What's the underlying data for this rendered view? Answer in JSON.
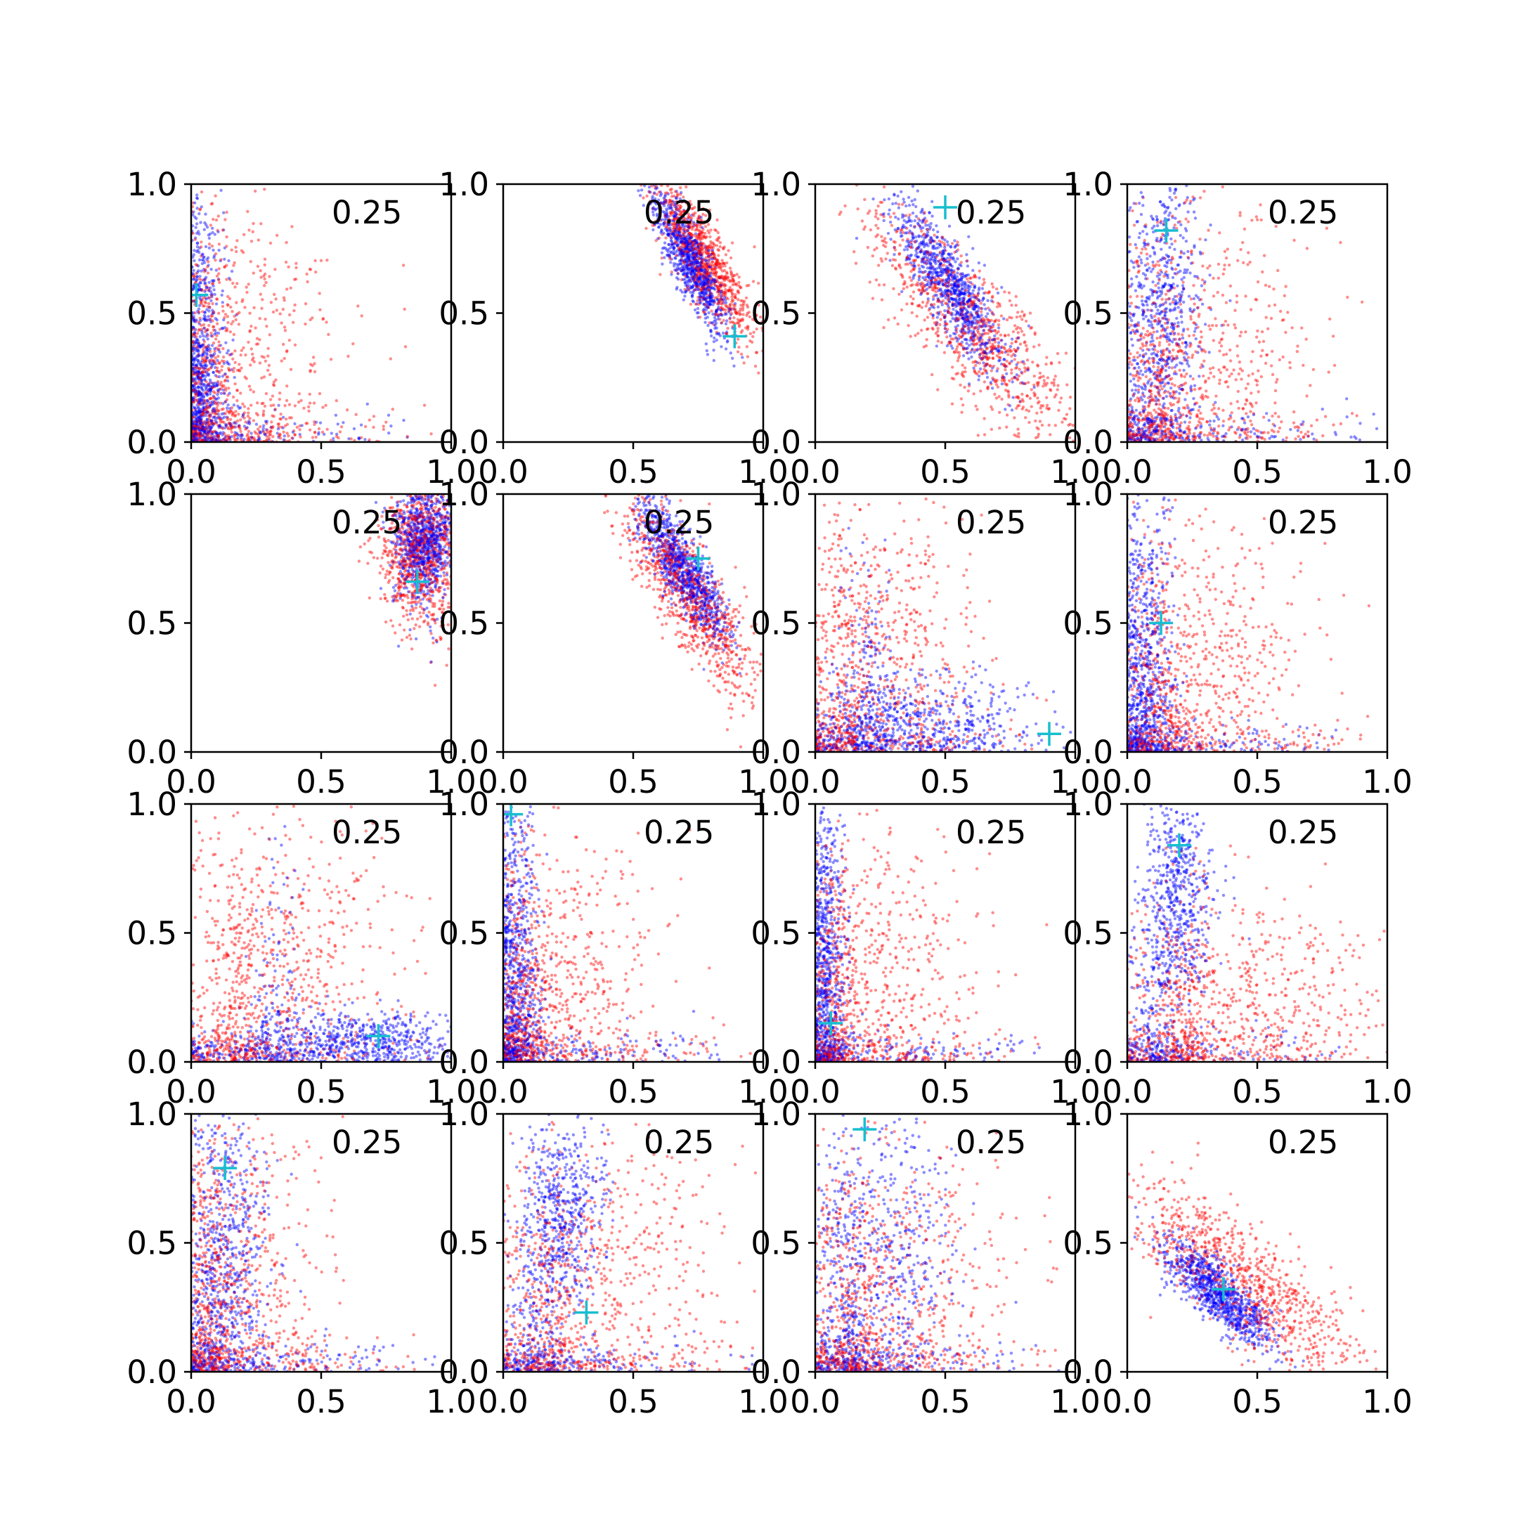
{
  "chart_data": {
    "type": "scatter",
    "layout": "4x4 grid",
    "panel_label": "0.25",
    "xlim": [
      0,
      1
    ],
    "ylim": [
      0,
      1
    ],
    "xticks": [
      0.0,
      0.5,
      1.0
    ],
    "yticks": [
      0.0,
      0.5,
      1.0
    ],
    "tick_format": "0.0",
    "grid": false,
    "legend": null,
    "colors": {
      "series_a": "#0000ff",
      "series_b": "#ff0000",
      "marker": "#17becf",
      "axes": "#000000"
    },
    "panels": [
      {
        "marker": [
          0.02,
          0.57
        ],
        "pattern": "L-shape",
        "blue": {
          "cx": 0.04,
          "cy": 0.12,
          "sx": 0.05,
          "sy": 0.4
        },
        "red": {
          "cx": 0.1,
          "cy": 0.3,
          "sx": 0.25,
          "sy": 0.35
        }
      },
      {
        "marker": [
          0.89,
          0.41
        ],
        "pattern": "diagonal",
        "blue": {
          "cx": 0.72,
          "cy": 0.7,
          "sx": 0.07,
          "sy": 0.16
        },
        "red": {
          "cx": 0.78,
          "cy": 0.7,
          "sx": 0.09,
          "sy": 0.18
        }
      },
      {
        "marker": [
          0.5,
          0.91
        ],
        "pattern": "diagonal",
        "blue": {
          "cx": 0.52,
          "cy": 0.6,
          "sx": 0.1,
          "sy": 0.18
        },
        "red": {
          "cx": 0.6,
          "cy": 0.45,
          "sx": 0.18,
          "sy": 0.25
        }
      },
      {
        "marker": [
          0.15,
          0.82
        ],
        "pattern": "L-shape",
        "blue": {
          "cx": 0.15,
          "cy": 0.55,
          "sx": 0.07,
          "sy": 0.28
        },
        "red": {
          "cx": 0.25,
          "cy": 0.35,
          "sx": 0.22,
          "sy": 0.3
        }
      },
      {
        "marker": [
          0.87,
          0.66
        ],
        "pattern": "cluster",
        "blue": {
          "cx": 0.9,
          "cy": 0.82,
          "sx": 0.06,
          "sy": 0.12
        },
        "red": {
          "cx": 0.88,
          "cy": 0.78,
          "sx": 0.08,
          "sy": 0.15
        }
      },
      {
        "marker": [
          0.75,
          0.75
        ],
        "pattern": "diagonal",
        "blue": {
          "cx": 0.7,
          "cy": 0.7,
          "sx": 0.08,
          "sy": 0.15
        },
        "red": {
          "cx": 0.72,
          "cy": 0.6,
          "sx": 0.12,
          "sy": 0.22
        }
      },
      {
        "marker": [
          0.9,
          0.07
        ],
        "pattern": "L-shape",
        "blue": {
          "cx": 0.4,
          "cy": 0.12,
          "sx": 0.25,
          "sy": 0.1
        },
        "red": {
          "cx": 0.25,
          "cy": 0.4,
          "sx": 0.2,
          "sy": 0.3
        }
      },
      {
        "marker": [
          0.13,
          0.5
        ],
        "pattern": "L-shape",
        "blue": {
          "cx": 0.08,
          "cy": 0.3,
          "sx": 0.06,
          "sy": 0.35
        },
        "red": {
          "cx": 0.25,
          "cy": 0.35,
          "sx": 0.22,
          "sy": 0.3
        }
      },
      {
        "marker": [
          0.72,
          0.1
        ],
        "pattern": "L-shape",
        "blue": {
          "cx": 0.65,
          "cy": 0.08,
          "sx": 0.2,
          "sy": 0.06
        },
        "red": {
          "cx": 0.35,
          "cy": 0.4,
          "sx": 0.22,
          "sy": 0.3
        }
      },
      {
        "marker": [
          0.03,
          0.96
        ],
        "pattern": "L-shape",
        "blue": {
          "cx": 0.05,
          "cy": 0.4,
          "sx": 0.05,
          "sy": 0.35
        },
        "red": {
          "cx": 0.15,
          "cy": 0.3,
          "sx": 0.22,
          "sy": 0.3
        }
      },
      {
        "marker": [
          0.06,
          0.15
        ],
        "pattern": "L-shape",
        "blue": {
          "cx": 0.04,
          "cy": 0.45,
          "sx": 0.04,
          "sy": 0.35
        },
        "red": {
          "cx": 0.15,
          "cy": 0.35,
          "sx": 0.22,
          "sy": 0.3
        }
      },
      {
        "marker": [
          0.2,
          0.84
        ],
        "pattern": "L-shape",
        "blue": {
          "cx": 0.2,
          "cy": 0.65,
          "sx": 0.07,
          "sy": 0.22
        },
        "red": {
          "cx": 0.45,
          "cy": 0.25,
          "sx": 0.3,
          "sy": 0.2
        }
      },
      {
        "marker": [
          0.13,
          0.79
        ],
        "pattern": "L-shape",
        "blue": {
          "cx": 0.15,
          "cy": 0.5,
          "sx": 0.08,
          "sy": 0.3
        },
        "red": {
          "cx": 0.15,
          "cy": 0.4,
          "sx": 0.18,
          "sy": 0.3
        }
      },
      {
        "marker": [
          0.32,
          0.23
        ],
        "pattern": "L-shape",
        "blue": {
          "cx": 0.22,
          "cy": 0.6,
          "sx": 0.08,
          "sy": 0.22
        },
        "red": {
          "cx": 0.35,
          "cy": 0.4,
          "sx": 0.25,
          "sy": 0.3
        }
      },
      {
        "marker": [
          0.19,
          0.94
        ],
        "pattern": "L-shape",
        "blue": {
          "cx": 0.25,
          "cy": 0.45,
          "sx": 0.15,
          "sy": 0.3
        },
        "red": {
          "cx": 0.3,
          "cy": 0.35,
          "sx": 0.25,
          "sy": 0.3
        }
      },
      {
        "marker": [
          0.37,
          0.32
        ],
        "pattern": "diagonal",
        "blue": {
          "cx": 0.35,
          "cy": 0.3,
          "sx": 0.1,
          "sy": 0.12
        },
        "red": {
          "cx": 0.45,
          "cy": 0.35,
          "sx": 0.22,
          "sy": 0.22
        }
      }
    ]
  }
}
